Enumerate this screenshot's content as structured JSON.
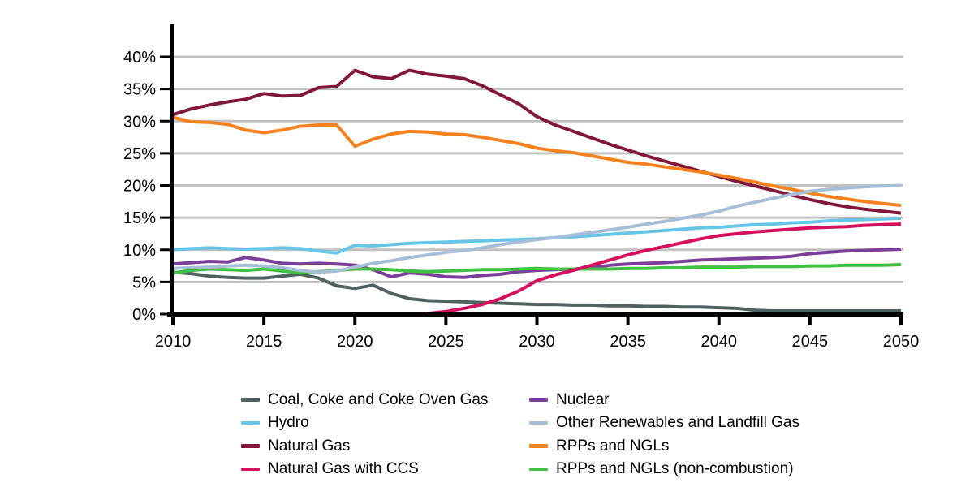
{
  "chart_data": {
    "type": "line",
    "x": [
      2010,
      2011,
      2012,
      2013,
      2014,
      2015,
      2016,
      2017,
      2018,
      2019,
      2020,
      2021,
      2022,
      2023,
      2024,
      2025,
      2026,
      2027,
      2028,
      2029,
      2030,
      2031,
      2032,
      2033,
      2034,
      2035,
      2036,
      2037,
      2038,
      2039,
      2040,
      2041,
      2042,
      2043,
      2044,
      2045,
      2046,
      2047,
      2048,
      2049,
      2050
    ],
    "x_ticks": [
      2010,
      2015,
      2020,
      2025,
      2030,
      2035,
      2040,
      2045,
      2050
    ],
    "y_ticks": [
      "0%",
      "5%",
      "10%",
      "15%",
      "20%",
      "25%",
      "30%",
      "35%",
      "40%"
    ],
    "y_tick_values": [
      0,
      5,
      10,
      15,
      20,
      25,
      30,
      35,
      40
    ],
    "ylim": [
      0,
      40
    ],
    "xlabel": "",
    "ylabel": "",
    "grid": true,
    "legend_position": "bottom-two-columns",
    "series": [
      {
        "name": "Coal, Coke and Coke Oven Gas",
        "color": "#50625f",
        "values": [
          6.5,
          6.3,
          5.9,
          5.7,
          5.6,
          5.6,
          5.9,
          6.2,
          5.6,
          4.4,
          4.0,
          4.5,
          3.2,
          2.4,
          2.1,
          2.0,
          1.9,
          1.8,
          1.7,
          1.6,
          1.5,
          1.5,
          1.4,
          1.4,
          1.3,
          1.3,
          1.2,
          1.2,
          1.1,
          1.1,
          1.0,
          0.9,
          0.6,
          0.5,
          0.5,
          0.5,
          0.5,
          0.5,
          0.5,
          0.5,
          0.5
        ]
      },
      {
        "name": "Hydro",
        "color": "#67c5e8",
        "values": [
          10.0,
          10.2,
          10.3,
          10.2,
          10.1,
          10.2,
          10.3,
          10.2,
          9.8,
          9.5,
          10.7,
          10.6,
          10.8,
          11.0,
          11.1,
          11.2,
          11.3,
          11.4,
          11.5,
          11.6,
          11.7,
          11.9,
          12.0,
          12.2,
          12.4,
          12.6,
          12.8,
          13.0,
          13.2,
          13.4,
          13.5,
          13.7,
          13.9,
          14.0,
          14.2,
          14.3,
          14.5,
          14.6,
          14.7,
          14.8,
          14.9
        ]
      },
      {
        "name": "Natural Gas",
        "color": "#81183b",
        "values": [
          31.0,
          31.9,
          32.5,
          33.0,
          33.4,
          34.3,
          33.9,
          34.0,
          35.2,
          35.4,
          37.9,
          36.9,
          36.6,
          37.9,
          37.3,
          37.0,
          36.6,
          35.5,
          34.1,
          32.7,
          30.7,
          29.4,
          28.4,
          27.4,
          26.4,
          25.5,
          24.6,
          23.8,
          23.0,
          22.2,
          21.4,
          20.6,
          19.9,
          19.2,
          18.5,
          17.8,
          17.2,
          16.7,
          16.3,
          16.0,
          15.7
        ]
      },
      {
        "name": "Natural Gas with CCS",
        "color": "#d5115f",
        "values": [
          null,
          null,
          null,
          null,
          null,
          null,
          null,
          null,
          null,
          null,
          null,
          null,
          null,
          null,
          0.1,
          0.4,
          0.9,
          1.5,
          2.4,
          3.6,
          5.2,
          6.1,
          6.8,
          7.6,
          8.4,
          9.2,
          9.9,
          10.5,
          11.1,
          11.7,
          12.2,
          12.5,
          12.8,
          13.0,
          13.2,
          13.4,
          13.5,
          13.6,
          13.8,
          13.9,
          14.0
        ]
      },
      {
        "name": "Nuclear",
        "color": "#7a3f98",
        "values": [
          7.8,
          8.0,
          8.2,
          8.1,
          8.8,
          8.4,
          7.9,
          7.8,
          7.9,
          7.8,
          7.6,
          6.9,
          5.8,
          6.4,
          6.2,
          5.8,
          5.7,
          6.0,
          6.2,
          6.6,
          6.8,
          6.9,
          7.0,
          7.2,
          7.6,
          7.8,
          7.9,
          8.0,
          8.2,
          8.4,
          8.5,
          8.6,
          8.7,
          8.8,
          9.0,
          9.4,
          9.6,
          9.8,
          9.9,
          10.0,
          10.1
        ]
      },
      {
        "name": "Other Renewables and Landfill Gas",
        "color": "#a7bed8",
        "values": [
          7.1,
          7.2,
          7.3,
          7.5,
          7.6,
          7.5,
          7.2,
          6.8,
          6.5,
          6.7,
          7.3,
          7.9,
          8.3,
          8.8,
          9.2,
          9.6,
          9.9,
          10.3,
          10.8,
          11.2,
          11.6,
          11.9,
          12.3,
          12.7,
          13.1,
          13.5,
          14.0,
          14.4,
          14.9,
          15.4,
          16.0,
          16.8,
          17.4,
          18.0,
          18.6,
          19.1,
          19.4,
          19.6,
          19.8,
          19.9,
          20.0
        ]
      },
      {
        "name": "RPPs and NGLs",
        "color": "#f5821f",
        "values": [
          30.6,
          29.9,
          29.8,
          29.5,
          28.6,
          28.2,
          28.6,
          29.2,
          29.4,
          29.4,
          26.1,
          27.2,
          28.0,
          28.4,
          28.3,
          28.0,
          27.9,
          27.5,
          27.0,
          26.5,
          25.8,
          25.4,
          25.1,
          24.6,
          24.1,
          23.6,
          23.3,
          22.9,
          22.5,
          22.1,
          21.6,
          21.1,
          20.5,
          19.9,
          19.4,
          18.8,
          18.3,
          17.9,
          17.5,
          17.2,
          16.9
        ]
      },
      {
        "name": "RPPs and NGLs (non-combustion)",
        "color": "#42c044",
        "values": [
          6.4,
          6.8,
          7.0,
          6.9,
          6.8,
          7.0,
          6.7,
          6.4,
          6.6,
          6.8,
          7.0,
          7.0,
          6.9,
          6.7,
          6.6,
          6.7,
          6.8,
          6.9,
          6.9,
          7.0,
          7.1,
          7.0,
          7.0,
          7.0,
          7.0,
          7.1,
          7.1,
          7.2,
          7.2,
          7.3,
          7.3,
          7.3,
          7.4,
          7.4,
          7.4,
          7.5,
          7.5,
          7.6,
          7.6,
          7.6,
          7.7
        ]
      }
    ],
    "style": {
      "grid_color": "#c1c1c1",
      "axis_color": "#000000",
      "text_color": "#000000",
      "background": "#ffffff"
    }
  }
}
